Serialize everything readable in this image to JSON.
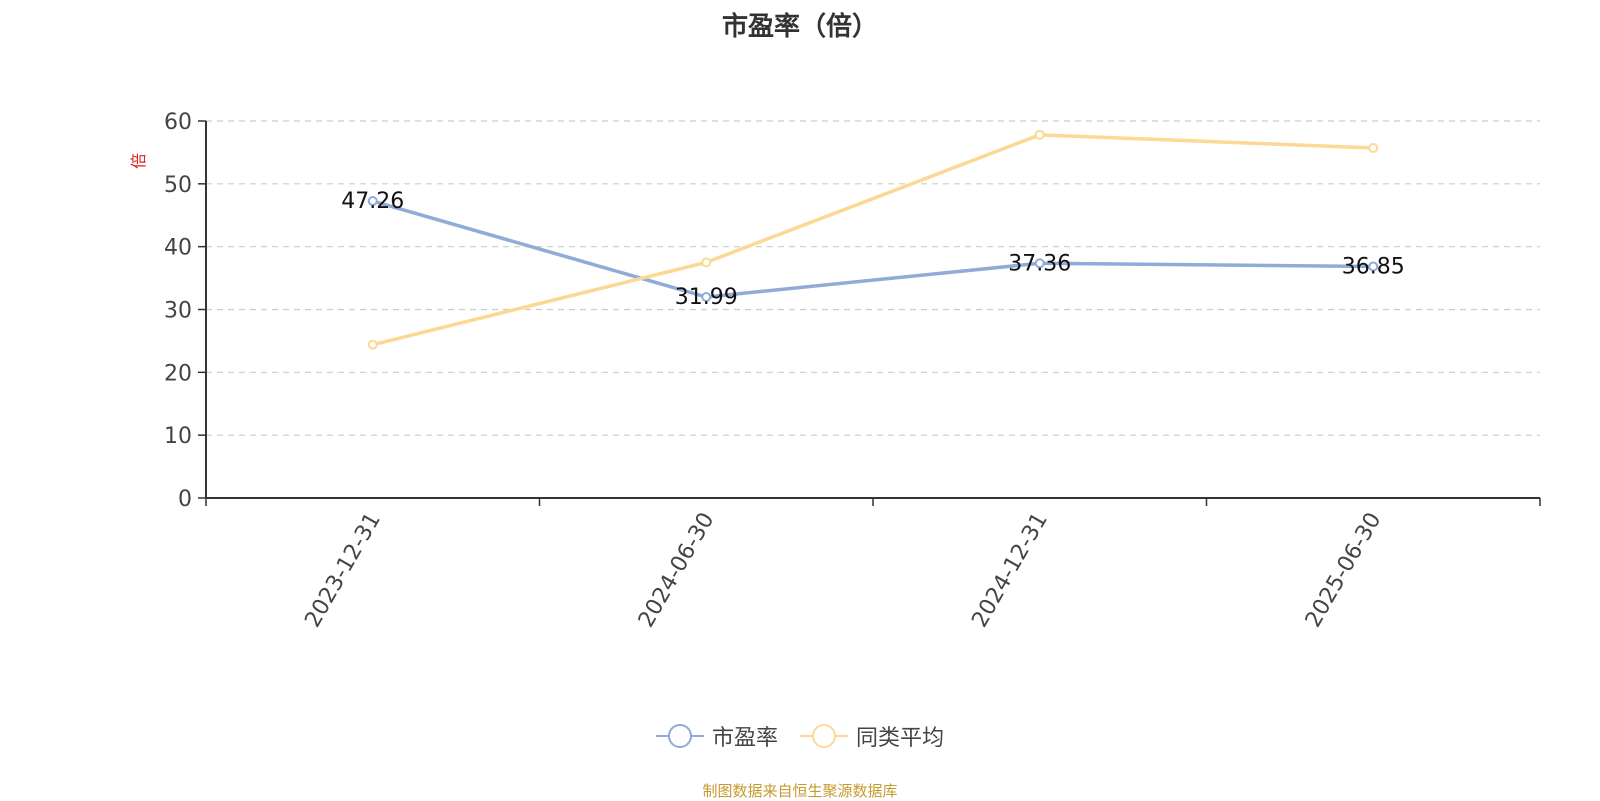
{
  "chart_data": {
    "type": "line",
    "title": "市盈率（倍）",
    "ylabel": "倍",
    "ylim": [
      0,
      60
    ],
    "yticks": [
      0,
      10,
      20,
      30,
      40,
      50,
      60
    ],
    "categories": [
      "2023-12-31",
      "2024-06-30",
      "2024-12-31",
      "2025-06-30"
    ],
    "grid": "dashed horizontal",
    "legend_position": "bottom",
    "series": [
      {
        "name": "市盈率",
        "color": "#8fabd6",
        "values": [
          47.26,
          31.99,
          37.36,
          36.85
        ],
        "labels": [
          "47.26",
          "31.99",
          "37.36",
          "36.85"
        ]
      },
      {
        "name": "同类平均",
        "color": "#fbd894",
        "values": [
          24.4,
          37.5,
          57.8,
          55.7
        ]
      }
    ]
  },
  "footer": {
    "credit": "制图数据来自恒生聚源数据库"
  },
  "colors": {
    "ylabel": "#e02020",
    "axis": "#333333",
    "grid": "#cccccc",
    "footer": "#c79a2e"
  }
}
